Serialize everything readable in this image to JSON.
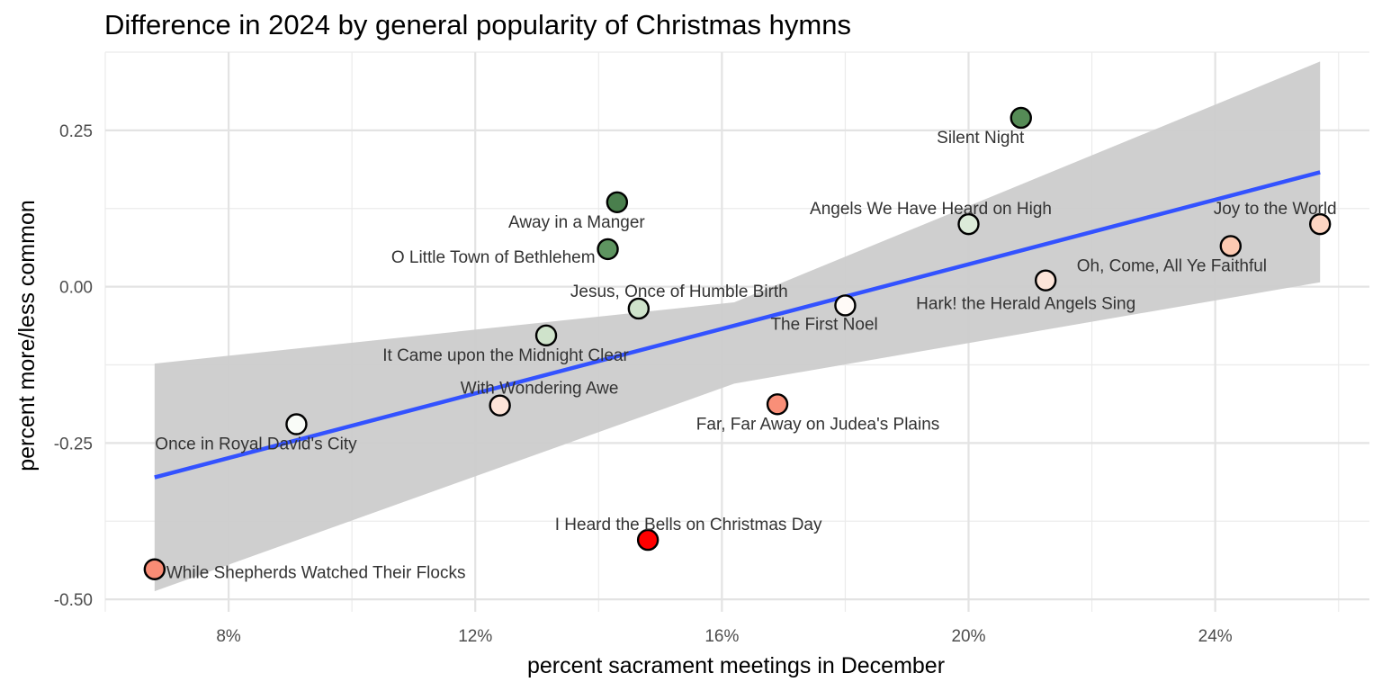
{
  "chart_data": {
    "type": "scatter",
    "title": "Difference in 2024 by general popularity of Christmas hymns",
    "xlabel": "percent sacrament meetings in December",
    "ylabel": "percent more/less common",
    "xlim": [
      6.0,
      26.5
    ],
    "ylim": [
      -0.52,
      0.375
    ],
    "x_ticks": [
      8,
      12,
      16,
      20,
      24
    ],
    "x_tick_labels": [
      "8%",
      "12%",
      "16%",
      "20%",
      "24%"
    ],
    "y_ticks": [
      -0.5,
      -0.25,
      0.0,
      0.25
    ],
    "y_tick_labels": [
      "-0.50",
      "-0.25",
      "0.00",
      "0.25"
    ],
    "grid": true,
    "points": [
      {
        "label": "Silent Night",
        "x": 20.85,
        "y": 0.27,
        "color": "#558b56"
      },
      {
        "label": "Away in a Manger",
        "x": 14.3,
        "y": 0.135,
        "color": "#4a7f4d"
      },
      {
        "label": "O Little Town of Bethlehem",
        "x": 14.15,
        "y": 0.06,
        "color": "#5e9460"
      },
      {
        "label": "Angels We Have Heard on High",
        "x": 20.0,
        "y": 0.1,
        "color": "#dcebd9"
      },
      {
        "label": "Joy to the World",
        "x": 25.7,
        "y": 0.1,
        "color": "#fdd5c3"
      },
      {
        "label": "Oh, Come, All Ye Faithful",
        "x": 24.25,
        "y": 0.065,
        "color": "#fcc9b1"
      },
      {
        "label": "Hark! the Herald Angels Sing",
        "x": 21.25,
        "y": 0.01,
        "color": "#fde5d9"
      },
      {
        "label": "The First Noel",
        "x": 18.0,
        "y": -0.03,
        "color": "#fffaf7"
      },
      {
        "label": "Jesus, Once of Humble Birth",
        "x": 14.65,
        "y": -0.035,
        "color": "#cfe3cb"
      },
      {
        "label": "It Came upon the Midnight Clear",
        "x": 13.15,
        "y": -0.078,
        "color": "#cfe3cb"
      },
      {
        "label": "With Wondering Awe",
        "x": 12.4,
        "y": -0.19,
        "color": "#fee4d8"
      },
      {
        "label": "Far, Far Away on Judea's Plains",
        "x": 16.9,
        "y": -0.188,
        "color": "#f98f78"
      },
      {
        "label": "Once in Royal David's City",
        "x": 9.1,
        "y": -0.22,
        "color": "#f9fcf8"
      },
      {
        "label": "I Heard the Bells on Christmas Day",
        "x": 14.8,
        "y": -0.405,
        "color": "#ff0000"
      },
      {
        "label": "While Shepherds Watched Their Flocks",
        "x": 6.8,
        "y": -0.452,
        "color": "#f98c75"
      }
    ],
    "trend_line": {
      "x": [
        6.8,
        25.7
      ],
      "y": [
        -0.305,
        0.183
      ],
      "color": "#3352ff"
    },
    "confidence_band": {
      "x": [
        6.8,
        16.2,
        25.7
      ],
      "upper": [
        -0.123,
        -0.025,
        0.36
      ],
      "lower": [
        -0.487,
        -0.155,
        0.007
      ],
      "color": "#cccccc"
    }
  }
}
